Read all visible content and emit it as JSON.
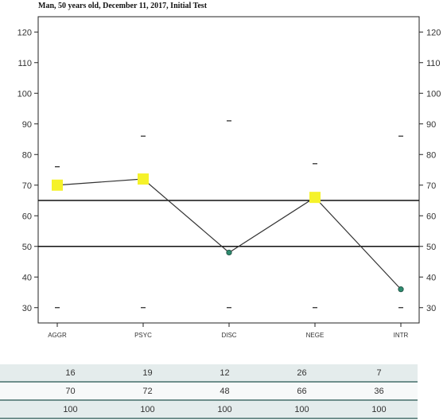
{
  "chart_data": {
    "type": "line",
    "title": "Man, 50 years old, December 11, 2017, Initial Test",
    "categories": [
      "AGGR",
      "PSYC",
      "DISC",
      "NEGE",
      "INTR"
    ],
    "values": [
      70,
      72,
      48,
      66,
      36
    ],
    "highlighted": [
      true,
      true,
      false,
      true,
      false
    ],
    "reference_marks": {
      "upper": [
        76,
        86,
        91,
        77,
        86
      ],
      "lower": [
        30,
        30,
        30,
        30,
        30
      ]
    },
    "reference_lines": [
      65,
      50
    ],
    "ylim": [
      25,
      125
    ],
    "yticks": [
      30,
      40,
      50,
      60,
      70,
      80,
      90,
      100,
      110,
      120
    ],
    "xlabel": "",
    "ylabel": "",
    "grid": false,
    "colors": {
      "line": "#333333",
      "highlight": "#f5f22a",
      "point": "#2e8b6f",
      "axis": "#222222"
    }
  },
  "table": {
    "rows": [
      [
        "16",
        "19",
        "12",
        "26",
        "7"
      ],
      [
        "70",
        "72",
        "48",
        "66",
        "36"
      ],
      [
        "100",
        "100",
        "100",
        "100",
        "100"
      ]
    ]
  }
}
